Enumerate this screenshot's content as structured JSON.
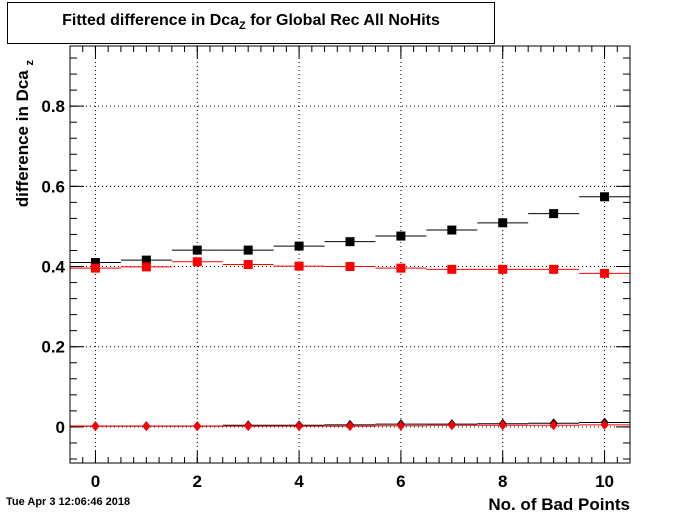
{
  "title": {
    "prefix": "Fitted difference in Dca",
    "subscript": "Z",
    "suffix": " for Global Rec All NoHits"
  },
  "timestamp": "Tue Apr  3 12:06:46 2018",
  "chart_data": {
    "type": "scatter",
    "title": "Fitted difference in Dca_Z for Global Rec All NoHits",
    "xlabel": "No. of Bad Points",
    "ylabel": "difference in Dca",
    "ylabel_subscript": "z",
    "xlim": [
      -0.5,
      10.5
    ],
    "ylim": [
      -0.09,
      0.95
    ],
    "x_ticks": [
      0,
      2,
      4,
      6,
      8,
      10
    ],
    "y_ticks": [
      0,
      0.2,
      0.4,
      0.6,
      0.8
    ],
    "y_tick_labels": [
      "0",
      "0.2",
      "0.4",
      "0.6",
      "0.8"
    ],
    "grid": true,
    "x": [
      0,
      1,
      2,
      3,
      4,
      5,
      6,
      7,
      8,
      9,
      10
    ],
    "series": [
      {
        "marker": "square",
        "color": "#000000",
        "values": [
          0.41,
          0.416,
          0.441,
          0.441,
          0.451,
          0.462,
          0.476,
          0.491,
          0.509,
          0.532,
          0.574
        ]
      },
      {
        "marker": "square",
        "color": "#ff0000",
        "values": [
          0.396,
          0.399,
          0.412,
          0.405,
          0.401,
          0.4,
          0.396,
          0.393,
          0.393,
          0.393,
          0.383
        ]
      },
      {
        "marker": "diamond",
        "color": "#000000",
        "values": [
          0.002,
          0.002,
          0.002,
          0.004,
          0.004,
          0.005,
          0.007,
          0.007,
          0.008,
          0.009,
          0.011
        ]
      },
      {
        "marker": "diamond",
        "color": "#ff0000",
        "values": [
          0.002,
          0.002,
          0.002,
          0.002,
          0.002,
          0.002,
          0.003,
          0.004,
          0.004,
          0.004,
          0.005
        ]
      }
    ]
  }
}
